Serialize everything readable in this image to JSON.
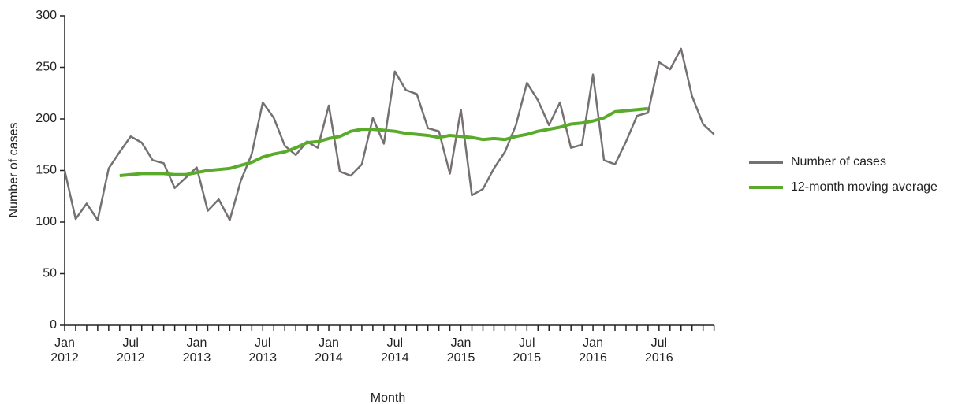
{
  "chart_data": {
    "type": "line",
    "x_label": "Month",
    "y_label": "Number of cases",
    "categories": [
      "Jan 2012",
      null,
      null,
      null,
      null,
      null,
      "Jul 2012",
      null,
      null,
      null,
      null,
      null,
      "Jan 2013",
      null,
      null,
      null,
      null,
      null,
      "Jul 2013",
      null,
      null,
      null,
      null,
      null,
      "Jan 2014",
      null,
      null,
      null,
      null,
      null,
      "Jul 2014",
      null,
      null,
      null,
      null,
      null,
      "Jan 2015",
      null,
      null,
      null,
      null,
      null,
      "Jul 2015",
      null,
      null,
      null,
      null,
      null,
      "Jan 2016",
      null,
      null,
      null,
      null,
      null,
      "Jul 2016",
      null,
      null,
      null,
      null,
      null
    ],
    "series": [
      {
        "name": "Number of cases",
        "color": "#767171",
        "values": [
          150,
          103,
          118,
          102,
          152,
          168,
          183,
          177,
          160,
          157,
          133,
          143,
          153,
          111,
          122,
          102,
          140,
          166,
          216,
          201,
          174,
          165,
          178,
          172,
          213,
          149,
          145,
          156,
          201,
          176,
          246,
          228,
          224,
          191,
          188,
          147,
          209,
          126,
          132,
          152,
          168,
          194,
          235,
          218,
          194,
          216,
          172,
          175,
          243,
          160,
          156,
          178,
          203,
          206,
          255,
          248,
          268,
          222,
          195,
          185
        ]
      },
      {
        "name": "12-month moving average",
        "color": "#5aab2b",
        "values": [
          null,
          null,
          null,
          null,
          null,
          145,
          146,
          147,
          147,
          147,
          146,
          146,
          148,
          150,
          151,
          152,
          155,
          158,
          163,
          166,
          168,
          172,
          177,
          178,
          181,
          183,
          188,
          190,
          190,
          189,
          188,
          186,
          185,
          184,
          182,
          184,
          183,
          182,
          180,
          181,
          180,
          183,
          185,
          188,
          190,
          192,
          195,
          196,
          198,
          201,
          207,
          208,
          209,
          210,
          null,
          null,
          null,
          null,
          null,
          null
        ]
      }
    ],
    "ylim": [
      0,
      300
    ],
    "yticks": [
      0,
      50,
      100,
      150,
      200,
      250,
      300
    ]
  }
}
